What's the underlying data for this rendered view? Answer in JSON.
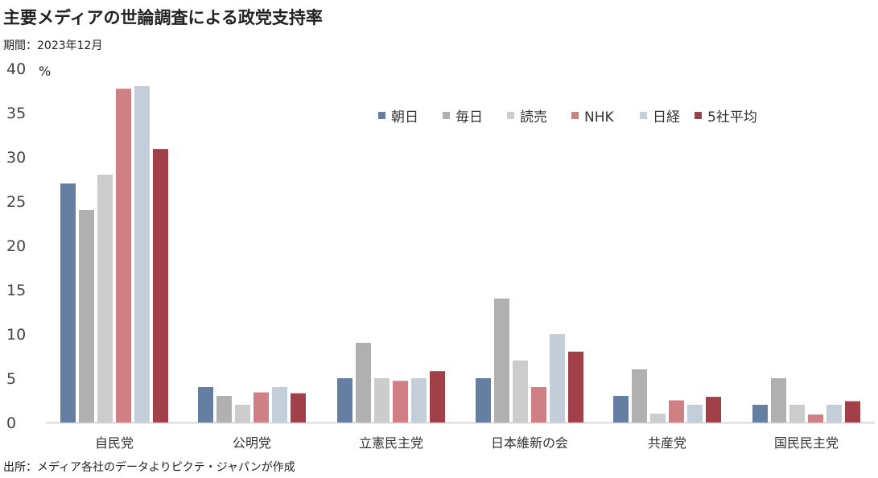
{
  "title": "主要メディアの世論調査による政党支持率",
  "period": "期間：2023年12月",
  "source": "出所：メディア各社のデータよりピクテ・ジャパンが作成",
  "chart_data": {
    "type": "bar",
    "title": "主要メディアの世論調査による政党支持率",
    "ylabel": "%",
    "xlabel": "",
    "ylim": [
      0,
      40
    ],
    "yticks": [
      0,
      5,
      10,
      15,
      20,
      25,
      30,
      35,
      40
    ],
    "grid": false,
    "legend_position": "top-right",
    "categories": [
      "自民党",
      "公明党",
      "立憲民主党",
      "日本維新の会",
      "共産党",
      "国民民主党"
    ],
    "series": [
      {
        "name": "朝日",
        "color": "#647fa1",
        "values": [
          27,
          4,
          5,
          5,
          3,
          2
        ]
      },
      {
        "name": "毎日",
        "color": "#b0b0b0",
        "values": [
          24,
          3,
          9,
          14,
          6,
          5
        ]
      },
      {
        "name": "読売",
        "color": "#cccccc",
        "values": [
          28,
          2,
          5,
          7,
          1,
          2
        ]
      },
      {
        "name": "NHK",
        "color": "#cf8085",
        "values": [
          37.7,
          3.4,
          4.7,
          4,
          2.5,
          0.9
        ]
      },
      {
        "name": "日経",
        "color": "#c3ceda",
        "values": [
          38,
          4,
          5,
          10,
          2,
          2
        ]
      },
      {
        "name": "5社平均",
        "color": "#a2404a",
        "values": [
          30.9,
          3.3,
          5.8,
          8,
          2.9,
          2.4
        ]
      }
    ]
  }
}
